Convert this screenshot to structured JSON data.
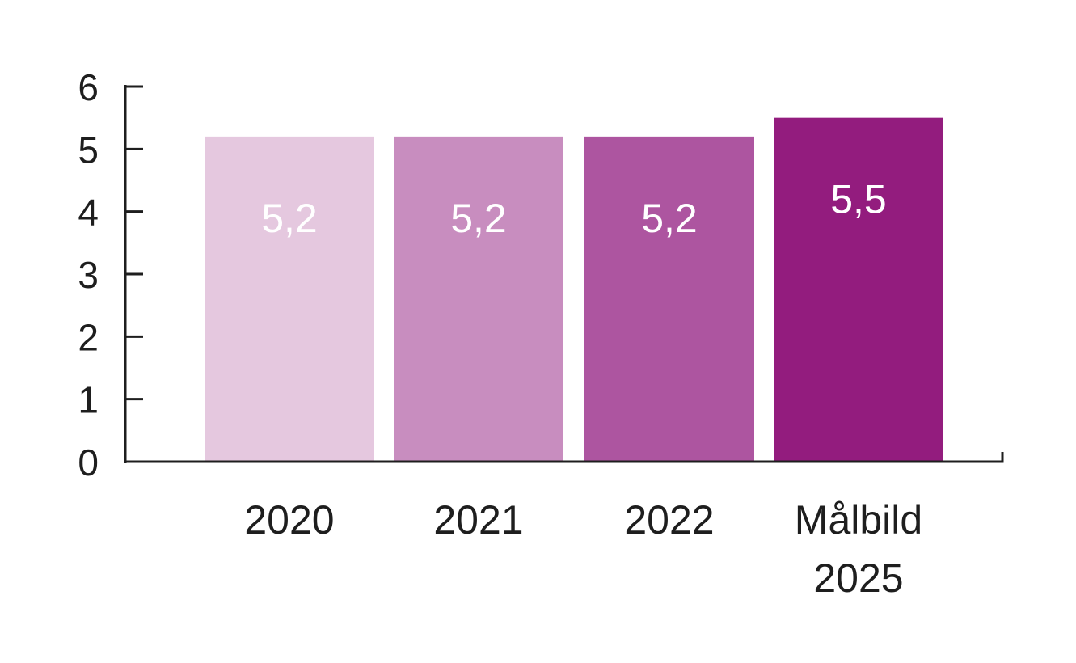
{
  "chart_data": {
    "type": "bar",
    "categories": [
      [
        "2020"
      ],
      [
        "2021"
      ],
      [
        "2022"
      ],
      [
        "Målbild",
        "2025"
      ]
    ],
    "values": [
      5.2,
      5.2,
      5.2,
      5.5
    ],
    "value_labels": [
      "5,2",
      "5,2",
      "5,2",
      "5,5"
    ],
    "bar_colors": [
      "#e5c8df",
      "#c88dbf",
      "#ad55a0",
      "#931c7e"
    ],
    "ylim": [
      0,
      6
    ],
    "yticks": [
      "0",
      "1",
      "2",
      "3",
      "4",
      "5",
      "6"
    ],
    "title": "",
    "xlabel": "",
    "ylabel": "",
    "grid": false,
    "axis_color": "#1e1e1e",
    "label_color": "#ffffff"
  }
}
